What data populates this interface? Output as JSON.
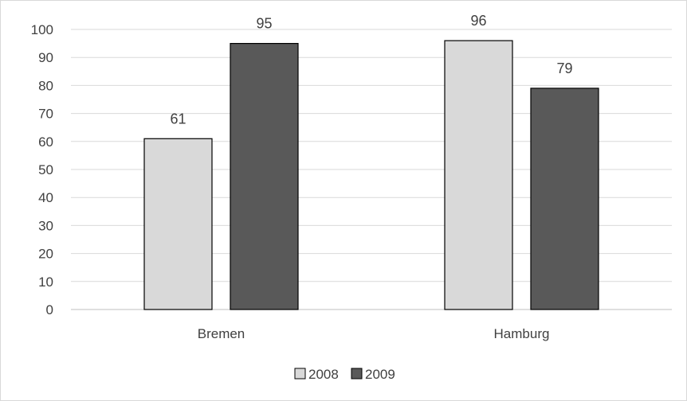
{
  "chart_data": {
    "type": "bar",
    "categories": [
      "Bremen",
      "Hamburg"
    ],
    "series": [
      {
        "name": "2008",
        "values": [
          61,
          96
        ],
        "color": "#d9d9d9"
      },
      {
        "name": "2009",
        "values": [
          95,
          79
        ],
        "color": "#595959"
      }
    ],
    "ylim": [
      0,
      100
    ],
    "yticks": [
      0,
      10,
      20,
      30,
      40,
      50,
      60,
      70,
      80,
      90,
      100
    ],
    "grid": true,
    "legend": "bottom",
    "data_labels": true,
    "bar_outline_color": "#000000",
    "grid_color": "#d9d9d9",
    "axis_line_color": "#bfbfbf"
  }
}
